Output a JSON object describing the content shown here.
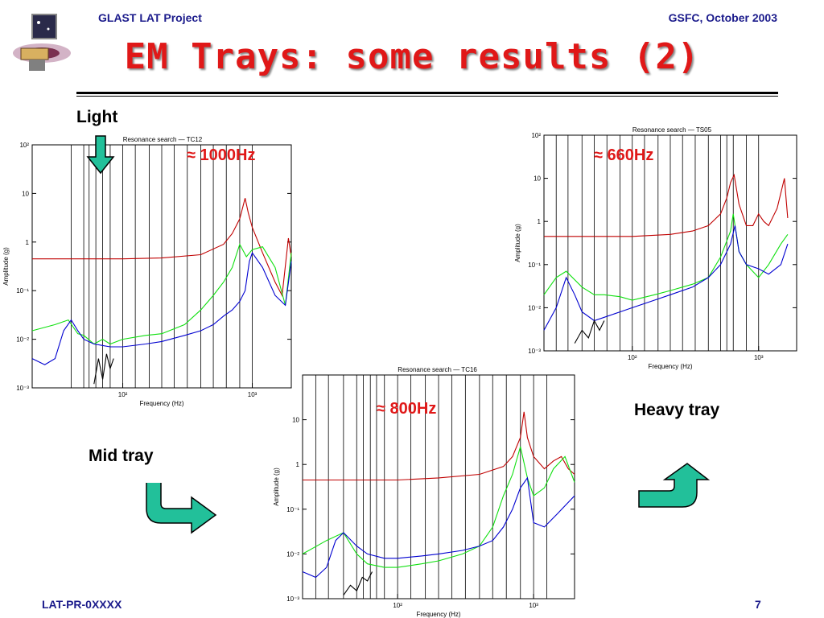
{
  "header": {
    "project": "GLAST LAT Project",
    "date": "GSFC, October 2003"
  },
  "title": "EM Trays: some results (2)",
  "labels": {
    "light": "Light",
    "mid": "Mid tray",
    "heavy": "Heavy tray"
  },
  "annotations": {
    "tc12": "≈ 1000Hz",
    "ts05": "≈  660Hz",
    "tc16": "≈ 800Hz"
  },
  "footer": {
    "left": "LAT-PR-0XXXX",
    "page": "7"
  },
  "colors": {
    "title": "#e01818",
    "header": "#1c1c8c",
    "arrow": "#22c09a",
    "red": "#c00000",
    "green": "#10e010",
    "blue": "#0000d0",
    "black": "#000000"
  },
  "chart_data": [
    {
      "type": "line",
      "title": "Resonance search — TC12",
      "xlabel": "Frequency (Hz)",
      "ylabel": "Amplitude (g)",
      "xscale": "log",
      "yscale": "log",
      "xlim": [
        20,
        2000
      ],
      "ylim": [
        0.001,
        100
      ],
      "xticks": [
        {
          "v": 100,
          "label": "10²"
        },
        {
          "v": 1000,
          "label": "10³"
        }
      ],
      "yticks": [
        {
          "v": 0.001,
          "label": "10⁻³"
        },
        {
          "v": 0.01,
          "label": "10⁻²"
        },
        {
          "v": 0.1,
          "label": "10⁻¹"
        },
        {
          "v": 1,
          "label": "1"
        },
        {
          "v": 10,
          "label": "10"
        },
        {
          "v": 100,
          "label": "10²"
        }
      ],
      "vlines": [
        40,
        50,
        55,
        62,
        70,
        80,
        100,
        125,
        160,
        200,
        250,
        315,
        400,
        500,
        630,
        800,
        1000
      ],
      "series": [
        {
          "color": "#c00000",
          "x": [
            20,
            100,
            200,
            400,
            600,
            700,
            800,
            880,
            930,
            1000,
            1200,
            1500,
            1700,
            1900,
            2000
          ],
          "y": [
            0.45,
            0.45,
            0.47,
            0.55,
            0.9,
            1.5,
            3,
            8,
            4,
            2,
            0.6,
            0.15,
            0.08,
            1.2,
            0.5
          ]
        },
        {
          "color": "#10e010",
          "x": [
            20,
            30,
            38,
            45,
            50,
            60,
            70,
            80,
            100,
            150,
            200,
            300,
            400,
            500,
            600,
            700,
            800,
            900,
            1000,
            1200,
            1500,
            1800,
            2000
          ],
          "y": [
            0.015,
            0.02,
            0.025,
            0.013,
            0.012,
            0.008,
            0.01,
            0.008,
            0.01,
            0.012,
            0.013,
            0.02,
            0.04,
            0.08,
            0.15,
            0.3,
            0.9,
            0.5,
            0.7,
            0.8,
            0.3,
            0.05,
            0.6
          ]
        },
        {
          "color": "#0000d0",
          "x": [
            20,
            25,
            30,
            35,
            40,
            45,
            50,
            60,
            80,
            100,
            150,
            200,
            300,
            400,
            500,
            600,
            700,
            800,
            880,
            950,
            1000,
            1200,
            1500,
            1800,
            2000
          ],
          "y": [
            0.004,
            0.003,
            0.004,
            0.015,
            0.025,
            0.015,
            0.01,
            0.008,
            0.007,
            0.007,
            0.008,
            0.009,
            0.012,
            0.015,
            0.02,
            0.03,
            0.04,
            0.06,
            0.1,
            0.4,
            0.6,
            0.3,
            0.08,
            0.05,
            0.4
          ]
        },
        {
          "color": "#000000",
          "x": [
            60,
            65,
            70,
            75,
            80,
            85
          ],
          "y": [
            0.0012,
            0.004,
            0.0015,
            0.005,
            0.0025,
            0.004
          ]
        }
      ]
    },
    {
      "type": "line",
      "title": "Resonance search — TS05",
      "xlabel": "Frequency (Hz)",
      "ylabel": "Amplitude (g)",
      "xscale": "log",
      "yscale": "log",
      "xlim": [
        20,
        2000
      ],
      "ylim": [
        0.001,
        100
      ],
      "xticks": [
        {
          "v": 100,
          "label": "10²"
        },
        {
          "v": 1000,
          "label": "10³"
        }
      ],
      "yticks": [
        {
          "v": 0.001,
          "label": "10⁻³"
        },
        {
          "v": 0.01,
          "label": "10⁻²"
        },
        {
          "v": 0.1,
          "label": "10⁻¹"
        },
        {
          "v": 1,
          "label": "1"
        },
        {
          "v": 10,
          "label": "10"
        },
        {
          "v": 100,
          "label": "10²"
        }
      ],
      "vlines": [
        25,
        31,
        40,
        50,
        63,
        80,
        100,
        125,
        160,
        200,
        250,
        315,
        400,
        500,
        560,
        630,
        800,
        1000
      ],
      "series": [
        {
          "color": "#c00000",
          "x": [
            20,
            100,
            200,
            300,
            400,
            500,
            560,
            600,
            640,
            700,
            800,
            900,
            1000,
            1100,
            1200,
            1400,
            1600,
            1700
          ],
          "y": [
            0.45,
            0.45,
            0.5,
            0.6,
            0.8,
            1.5,
            3.5,
            8,
            12,
            2.5,
            0.8,
            0.8,
            1.5,
            1,
            0.8,
            2,
            10,
            1.2
          ]
        },
        {
          "color": "#10e010",
          "x": [
            20,
            25,
            30,
            40,
            50,
            60,
            80,
            100,
            150,
            200,
            300,
            400,
            500,
            600,
            630,
            700,
            800,
            1000,
            1200,
            1500,
            1700
          ],
          "y": [
            0.02,
            0.05,
            0.07,
            0.03,
            0.02,
            0.02,
            0.018,
            0.015,
            0.02,
            0.025,
            0.035,
            0.05,
            0.15,
            0.6,
            1.5,
            0.2,
            0.1,
            0.05,
            0.1,
            0.3,
            0.5
          ]
        },
        {
          "color": "#0000d0",
          "x": [
            20,
            25,
            30,
            35,
            40,
            50,
            60,
            80,
            100,
            150,
            200,
            300,
            400,
            500,
            600,
            650,
            700,
            800,
            1000,
            1200,
            1500,
            1700
          ],
          "y": [
            0.003,
            0.01,
            0.05,
            0.02,
            0.008,
            0.005,
            0.006,
            0.008,
            0.01,
            0.015,
            0.02,
            0.03,
            0.05,
            0.1,
            0.3,
            0.8,
            0.2,
            0.1,
            0.08,
            0.06,
            0.1,
            0.3
          ]
        },
        {
          "color": "#000000",
          "x": [
            35,
            40,
            45,
            50,
            55,
            60
          ],
          "y": [
            0.0015,
            0.003,
            0.002,
            0.005,
            0.003,
            0.005
          ]
        }
      ]
    },
    {
      "type": "line",
      "title": "Resonance search — TC16",
      "xlabel": "Frequency (Hz)",
      "ylabel": "Amplitude (g)",
      "xscale": "log",
      "yscale": "log",
      "xlim": [
        20,
        2000
      ],
      "ylim": [
        0.001,
        100
      ],
      "xticks": [
        {
          "v": 100,
          "label": "10²"
        },
        {
          "v": 1000,
          "label": "10³"
        }
      ],
      "yticks": [
        {
          "v": 0.001,
          "label": "10⁻³"
        },
        {
          "v": 0.01,
          "label": "10⁻²"
        },
        {
          "v": 0.1,
          "label": "10⁻¹"
        },
        {
          "v": 1,
          "label": "1"
        },
        {
          "v": 10,
          "label": "10"
        }
      ],
      "vlines": [
        25,
        31,
        40,
        50,
        56,
        63,
        70,
        80,
        100,
        125,
        160,
        200,
        250,
        315,
        400,
        500,
        630,
        800,
        1000,
        1250
      ],
      "series": [
        {
          "color": "#c00000",
          "x": [
            20,
            100,
            200,
            400,
            600,
            700,
            800,
            850,
            900,
            1000,
            1200,
            1400,
            1600,
            1800,
            2000
          ],
          "y": [
            0.45,
            0.45,
            0.5,
            0.6,
            0.9,
            1.5,
            4,
            15,
            4,
            1.5,
            0.8,
            1.2,
            1.5,
            0.8,
            0.6
          ]
        },
        {
          "color": "#10e010",
          "x": [
            20,
            30,
            40,
            50,
            60,
            80,
            100,
            150,
            200,
            300,
            400,
            500,
            600,
            700,
            800,
            900,
            1000,
            1200,
            1400,
            1700,
            2000
          ],
          "y": [
            0.01,
            0.02,
            0.03,
            0.01,
            0.006,
            0.005,
            0.005,
            0.006,
            0.007,
            0.01,
            0.015,
            0.04,
            0.2,
            0.6,
            2.5,
            0.5,
            0.2,
            0.3,
            0.8,
            1.5,
            0.4
          ]
        },
        {
          "color": "#0000d0",
          "x": [
            20,
            25,
            30,
            35,
            40,
            50,
            60,
            80,
            100,
            150,
            200,
            300,
            400,
            500,
            600,
            700,
            800,
            900,
            1000,
            1200,
            1500,
            2000
          ],
          "y": [
            0.004,
            0.003,
            0.005,
            0.02,
            0.03,
            0.015,
            0.01,
            0.008,
            0.008,
            0.009,
            0.01,
            0.012,
            0.015,
            0.02,
            0.04,
            0.1,
            0.3,
            0.5,
            0.05,
            0.04,
            0.08,
            0.2
          ]
        },
        {
          "color": "#000000",
          "x": [
            40,
            45,
            50,
            55,
            60,
            65
          ],
          "y": [
            0.0012,
            0.002,
            0.0015,
            0.003,
            0.0025,
            0.004
          ]
        }
      ]
    }
  ]
}
